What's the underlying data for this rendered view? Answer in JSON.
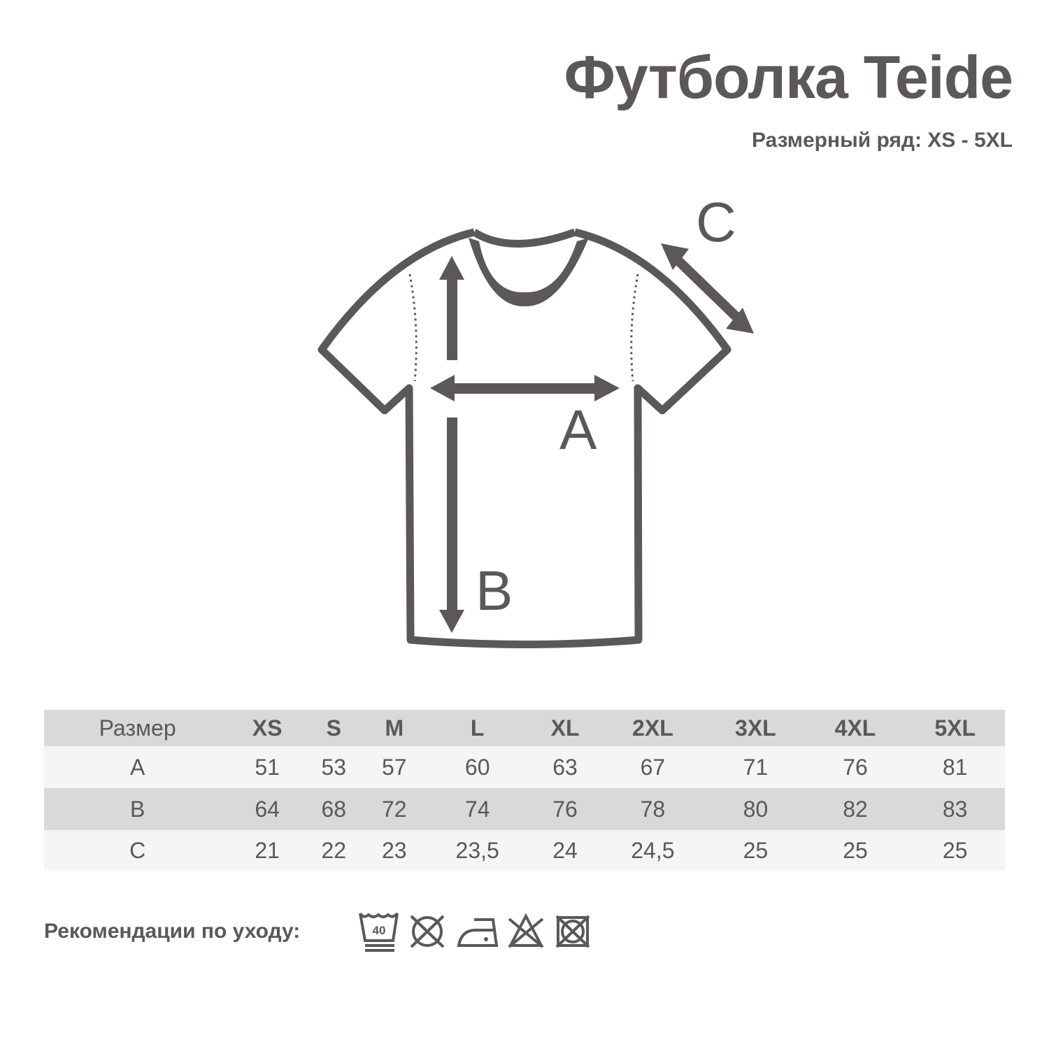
{
  "title": "Футболка Teide",
  "subtitle": "Размерный ряд: XS - 5XL",
  "diagram": {
    "label_a": "A",
    "label_b": "B",
    "label_c": "C"
  },
  "table": {
    "header": [
      "Размер",
      "XS",
      "S",
      "M",
      "L",
      "XL",
      "2XL",
      "3XL",
      "4XL",
      "5XL"
    ],
    "rows": [
      [
        "A",
        "51",
        "53",
        "57",
        "60",
        "63",
        "67",
        "71",
        "76",
        "81"
      ],
      [
        "B",
        "64",
        "68",
        "72",
        "74",
        "76",
        "78",
        "80",
        "82",
        "83"
      ],
      [
        "C",
        "21",
        "22",
        "23",
        "23,5",
        "24",
        "24,5",
        "25",
        "25",
        "25"
      ]
    ]
  },
  "care": {
    "label": "Рекомендации по уходу:",
    "wash_temp": "40",
    "icons": [
      "wash-40-gentle-icon",
      "no-tumble-dry-icon",
      "iron-low-icon",
      "no-bleach-icon",
      "no-dry-clean-icon"
    ]
  },
  "colors": {
    "ink": "#5b5857",
    "row_dark": "#d9d9d9",
    "row_light": "#f5f5f5"
  }
}
